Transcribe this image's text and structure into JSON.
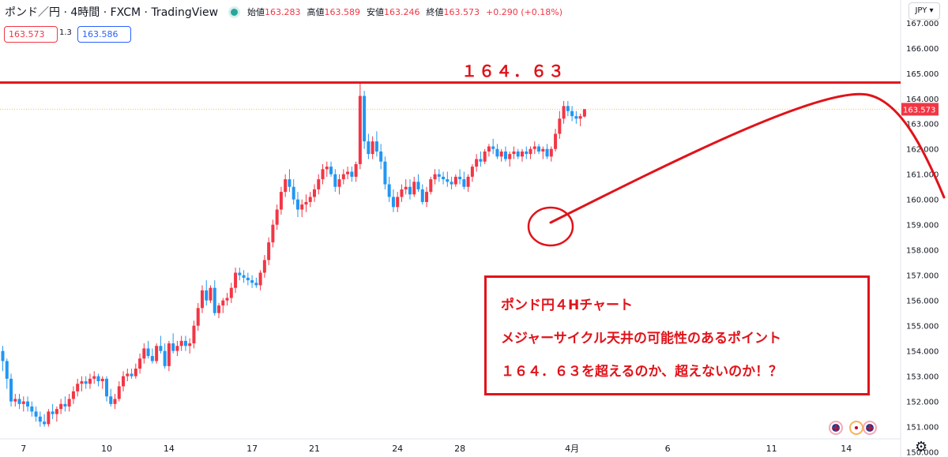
{
  "header": {
    "symbol": "ポンド／円 · 4時間 · FXCM · TradingView",
    "open_label": "始値",
    "open": "163.283",
    "high_label": "高値",
    "high": "163.589",
    "low_label": "安値",
    "low": "163.246",
    "close_label": "終値",
    "close": "163.573",
    "change": "+0.290 (+0.18%)"
  },
  "trade": {
    "sell": "163.573",
    "spread": "1.3",
    "buy": "163.586"
  },
  "currency_button": "JPY",
  "annotation": {
    "level_text": "１６４．６３",
    "box_line1": "ポンド円４Hチャート",
    "box_line2": "メジャーサイクル天井の可能性のあるポイント",
    "box_line3": "１６４．６３を超えるのか、超えないのか！？"
  },
  "colors": {
    "up": "#f23645",
    "down": "#2196f3",
    "annotation": "#e0131a",
    "last_price_bg": "#f23645"
  },
  "icons": [
    "live-status-icon",
    "settings-gear-icon",
    "uk-flag-icon",
    "japan-flag-icon"
  ],
  "chart_data": {
    "type": "candlestick",
    "timeframe": "4H",
    "ylim": [
      149.8,
      167.9
    ],
    "yticks": [
      150,
      151,
      152,
      153,
      154,
      155,
      156,
      157,
      158,
      159,
      160,
      161,
      162,
      163,
      164,
      165,
      166,
      167
    ],
    "ytick_labels": [
      "150.000",
      "151.000",
      "152.000",
      "153.000",
      "154.000",
      "155.000",
      "156.000",
      "157.000",
      "158.000",
      "159.000",
      "160.000",
      "161.000",
      "162.000",
      "163.000",
      "164.000",
      "165.000",
      "166.000",
      "167.000"
    ],
    "xtick_labels": [
      {
        "label": "7",
        "bar": 5
      },
      {
        "label": "10",
        "bar": 25
      },
      {
        "label": "14",
        "bar": 40
      },
      {
        "label": "17",
        "bar": 60
      },
      {
        "label": "21",
        "bar": 75
      },
      {
        "label": "24",
        "bar": 95
      },
      {
        "label": "28",
        "bar": 110
      },
      {
        "label": "4月",
        "bar": 137
      },
      {
        "label": "6",
        "bar": 160
      },
      {
        "label": "11",
        "bar": 185
      },
      {
        "label": "14",
        "bar": 203
      }
    ],
    "last_price": 163.573,
    "last_price_label": "163.573",
    "resistance": 164.63,
    "candles": [
      [
        154.0,
        154.2,
        153.2,
        153.6
      ],
      [
        153.6,
        153.7,
        152.5,
        152.9
      ],
      [
        152.9,
        153.1,
        151.8,
        152.0
      ],
      [
        152.0,
        152.3,
        151.8,
        152.1
      ],
      [
        152.1,
        152.3,
        151.7,
        151.9
      ],
      [
        151.9,
        152.2,
        151.6,
        152.0
      ],
      [
        152.0,
        152.2,
        151.6,
        151.8
      ],
      [
        151.8,
        152.0,
        151.4,
        151.6
      ],
      [
        151.6,
        151.8,
        151.2,
        151.4
      ],
      [
        151.4,
        151.6,
        151.0,
        151.2
      ],
      [
        151.2,
        151.5,
        151.0,
        151.1
      ],
      [
        151.1,
        151.7,
        151.0,
        151.6
      ],
      [
        151.6,
        151.9,
        151.3,
        151.5
      ],
      [
        151.5,
        151.8,
        151.2,
        151.7
      ],
      [
        151.7,
        152.1,
        151.5,
        151.9
      ],
      [
        151.9,
        152.2,
        151.6,
        151.8
      ],
      [
        151.8,
        152.3,
        151.6,
        152.1
      ],
      [
        152.1,
        152.6,
        151.9,
        152.4
      ],
      [
        152.4,
        152.9,
        152.2,
        152.7
      ],
      [
        152.7,
        153.0,
        152.4,
        152.8
      ],
      [
        152.8,
        153.0,
        152.5,
        152.7
      ],
      [
        152.7,
        153.1,
        152.5,
        152.9
      ],
      [
        152.9,
        153.2,
        152.7,
        153.0
      ],
      [
        153.0,
        153.1,
        152.6,
        152.8
      ],
      [
        152.8,
        153.0,
        152.5,
        152.9
      ],
      [
        152.9,
        153.0,
        152.0,
        152.2
      ],
      [
        152.2,
        152.5,
        151.8,
        151.9
      ],
      [
        151.9,
        152.3,
        151.7,
        152.1
      ],
      [
        152.1,
        152.8,
        152.0,
        152.6
      ],
      [
        152.6,
        153.2,
        152.4,
        153.0
      ],
      [
        153.0,
        153.3,
        152.8,
        153.1
      ],
      [
        153.1,
        153.3,
        152.9,
        153.0
      ],
      [
        153.0,
        153.5,
        152.9,
        153.3
      ],
      [
        153.3,
        153.9,
        153.1,
        153.7
      ],
      [
        153.7,
        154.3,
        153.5,
        154.1
      ],
      [
        154.1,
        154.4,
        153.7,
        153.8
      ],
      [
        153.8,
        154.1,
        153.5,
        153.6
      ],
      [
        153.6,
        154.3,
        153.5,
        154.2
      ],
      [
        154.2,
        154.6,
        153.9,
        154.0
      ],
      [
        154.0,
        154.3,
        153.3,
        153.4
      ],
      [
        153.4,
        154.4,
        153.2,
        154.3
      ],
      [
        154.3,
        154.7,
        153.9,
        154.0
      ],
      [
        154.0,
        154.4,
        153.8,
        154.2
      ],
      [
        154.2,
        154.6,
        154.0,
        154.4
      ],
      [
        154.4,
        154.6,
        154.0,
        154.2
      ],
      [
        154.2,
        154.5,
        153.9,
        154.3
      ],
      [
        154.3,
        155.2,
        154.1,
        155.0
      ],
      [
        155.0,
        155.9,
        154.8,
        155.7
      ],
      [
        155.7,
        156.6,
        155.5,
        156.4
      ],
      [
        156.4,
        156.8,
        155.8,
        156.0
      ],
      [
        156.0,
        156.6,
        155.9,
        156.5
      ],
      [
        156.5,
        156.8,
        155.4,
        155.5
      ],
      [
        155.5,
        155.9,
        155.3,
        155.8
      ],
      [
        155.8,
        156.1,
        155.5,
        156.0
      ],
      [
        156.0,
        156.3,
        155.8,
        156.1
      ],
      [
        156.1,
        156.7,
        155.9,
        156.5
      ],
      [
        156.5,
        157.3,
        156.3,
        157.1
      ],
      [
        157.1,
        157.3,
        156.8,
        157.0
      ],
      [
        157.0,
        157.2,
        156.7,
        156.9
      ],
      [
        156.9,
        157.1,
        156.6,
        156.8
      ],
      [
        156.8,
        157.0,
        156.5,
        156.7
      ],
      [
        156.7,
        156.9,
        156.5,
        156.6
      ],
      [
        156.6,
        157.2,
        156.4,
        157.1
      ],
      [
        157.1,
        157.8,
        156.9,
        157.6
      ],
      [
        157.6,
        158.5,
        157.4,
        158.3
      ],
      [
        158.3,
        159.2,
        158.1,
        159.0
      ],
      [
        159.0,
        159.8,
        158.8,
        159.6
      ],
      [
        159.6,
        160.5,
        159.4,
        160.3
      ],
      [
        160.3,
        161.0,
        160.1,
        160.8
      ],
      [
        160.8,
        161.2,
        160.3,
        160.5
      ],
      [
        160.5,
        160.8,
        159.8,
        160.0
      ],
      [
        160.0,
        160.3,
        159.3,
        159.6
      ],
      [
        159.6,
        160.0,
        159.3,
        159.8
      ],
      [
        159.8,
        160.2,
        159.5,
        159.9
      ],
      [
        159.9,
        160.3,
        159.7,
        160.1
      ],
      [
        160.1,
        160.6,
        159.9,
        160.4
      ],
      [
        160.4,
        161.0,
        160.2,
        160.8
      ],
      [
        160.8,
        161.4,
        160.6,
        161.2
      ],
      [
        161.2,
        161.5,
        160.9,
        161.3
      ],
      [
        161.3,
        161.5,
        160.9,
        161.0
      ],
      [
        161.0,
        161.2,
        160.3,
        160.5
      ],
      [
        160.5,
        161.0,
        160.2,
        160.8
      ],
      [
        160.8,
        161.2,
        160.6,
        161.0
      ],
      [
        161.0,
        161.3,
        160.8,
        161.1
      ],
      [
        161.1,
        161.3,
        160.7,
        160.9
      ],
      [
        160.9,
        161.5,
        160.7,
        161.4
      ],
      [
        161.4,
        164.6,
        161.2,
        164.1
      ],
      [
        164.1,
        164.3,
        162.0,
        162.3
      ],
      [
        162.3,
        162.6,
        161.6,
        161.8
      ],
      [
        161.8,
        162.5,
        161.6,
        162.3
      ],
      [
        162.3,
        162.7,
        161.7,
        161.9
      ],
      [
        161.9,
        162.2,
        161.2,
        161.5
      ],
      [
        161.5,
        161.7,
        160.4,
        160.6
      ],
      [
        160.6,
        160.9,
        159.9,
        160.1
      ],
      [
        160.1,
        160.4,
        159.5,
        159.7
      ],
      [
        159.7,
        160.3,
        159.5,
        160.1
      ],
      [
        160.1,
        160.6,
        159.9,
        160.4
      ],
      [
        160.4,
        160.8,
        160.2,
        160.5
      ],
      [
        160.5,
        160.8,
        160.0,
        160.2
      ],
      [
        160.2,
        160.9,
        160.1,
        160.7
      ],
      [
        160.7,
        161.0,
        160.3,
        160.4
      ],
      [
        160.4,
        160.6,
        159.8,
        159.9
      ],
      [
        159.9,
        160.5,
        159.7,
        160.3
      ],
      [
        160.3,
        160.9,
        160.2,
        160.8
      ],
      [
        160.8,
        161.2,
        160.6,
        161.0
      ],
      [
        161.0,
        161.2,
        160.7,
        160.9
      ],
      [
        160.9,
        161.1,
        160.6,
        160.8
      ],
      [
        160.8,
        161.1,
        160.5,
        160.7
      ],
      [
        160.7,
        160.9,
        160.4,
        160.6
      ],
      [
        160.6,
        161.0,
        160.5,
        160.9
      ],
      [
        160.9,
        161.2,
        160.6,
        160.8
      ],
      [
        160.8,
        161.1,
        160.4,
        160.5
      ],
      [
        160.5,
        161.0,
        160.3,
        160.9
      ],
      [
        160.9,
        161.4,
        160.7,
        161.3
      ],
      [
        161.3,
        161.8,
        161.1,
        161.6
      ],
      [
        161.6,
        161.9,
        161.3,
        161.5
      ],
      [
        161.5,
        162.0,
        161.4,
        161.9
      ],
      [
        161.9,
        162.2,
        161.7,
        162.1
      ],
      [
        162.1,
        162.4,
        161.8,
        162.0
      ],
      [
        162.0,
        162.2,
        161.6,
        161.7
      ],
      [
        161.7,
        162.0,
        161.5,
        161.9
      ],
      [
        161.9,
        162.1,
        161.5,
        161.6
      ],
      [
        161.6,
        161.9,
        161.3,
        161.8
      ],
      [
        161.8,
        162.1,
        161.6,
        161.9
      ],
      [
        161.9,
        162.0,
        161.6,
        161.7
      ],
      [
        161.7,
        162.0,
        161.5,
        161.9
      ],
      [
        161.9,
        162.1,
        161.6,
        161.8
      ],
      [
        161.8,
        162.1,
        161.6,
        162.0
      ],
      [
        162.0,
        162.3,
        161.8,
        162.1
      ],
      [
        162.1,
        162.2,
        161.8,
        161.9
      ],
      [
        161.9,
        162.1,
        161.6,
        162.0
      ],
      [
        162.0,
        162.2,
        161.6,
        161.7
      ],
      [
        161.7,
        162.1,
        161.5,
        162.0
      ],
      [
        162.0,
        162.8,
        161.9,
        162.6
      ],
      [
        162.6,
        163.5,
        162.4,
        163.2
      ],
      [
        163.2,
        163.9,
        163.0,
        163.7
      ],
      [
        163.7,
        163.9,
        163.3,
        163.5
      ],
      [
        163.5,
        163.7,
        163.1,
        163.3
      ],
      [
        163.3,
        163.5,
        163.0,
        163.2
      ],
      [
        163.2,
        163.4,
        162.9,
        163.3
      ],
      [
        163.283,
        163.589,
        163.246,
        163.573
      ]
    ]
  }
}
